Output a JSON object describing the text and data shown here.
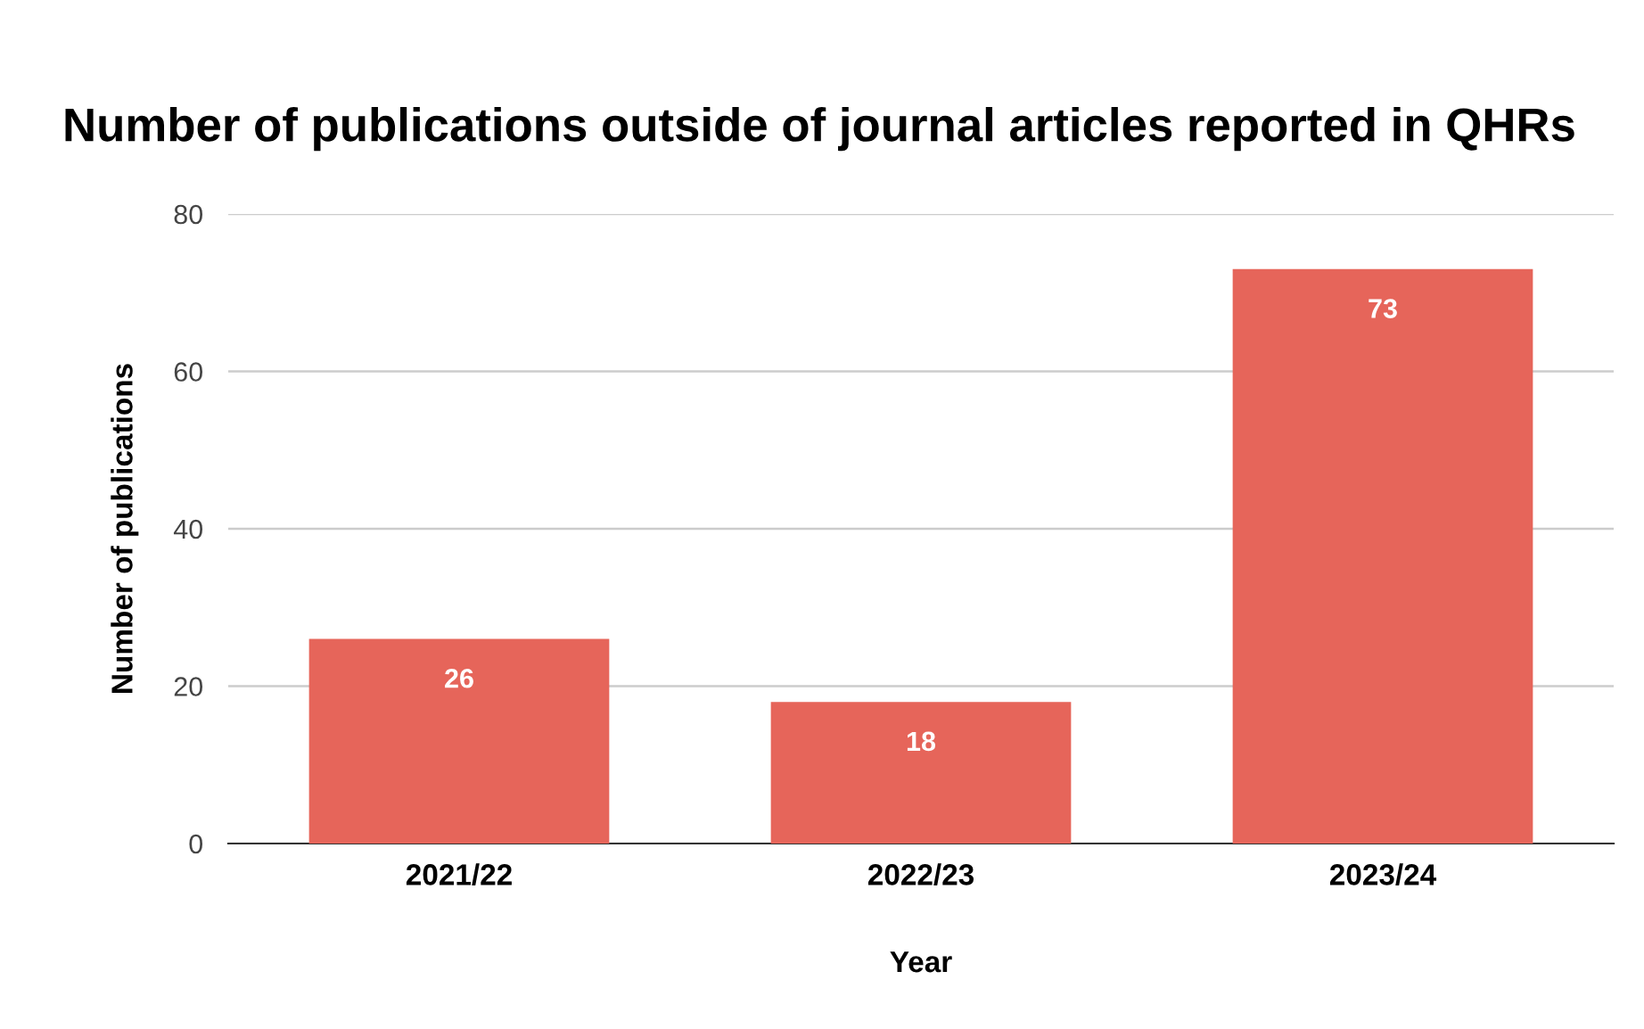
{
  "chart_data": {
    "type": "bar",
    "title": "Number of publications outside of journal articles reported in QHRs",
    "xlabel": "Year",
    "ylabel": "Number of publications",
    "categories": [
      "2021/22",
      "2022/23",
      "2023/24"
    ],
    "values": [
      26,
      18,
      73
    ],
    "color": "#e6655a",
    "data_labels": true,
    "ylim": [
      0,
      80
    ],
    "yticks": [
      0,
      20,
      40,
      60,
      80
    ],
    "grid": "y",
    "legend": false
  }
}
